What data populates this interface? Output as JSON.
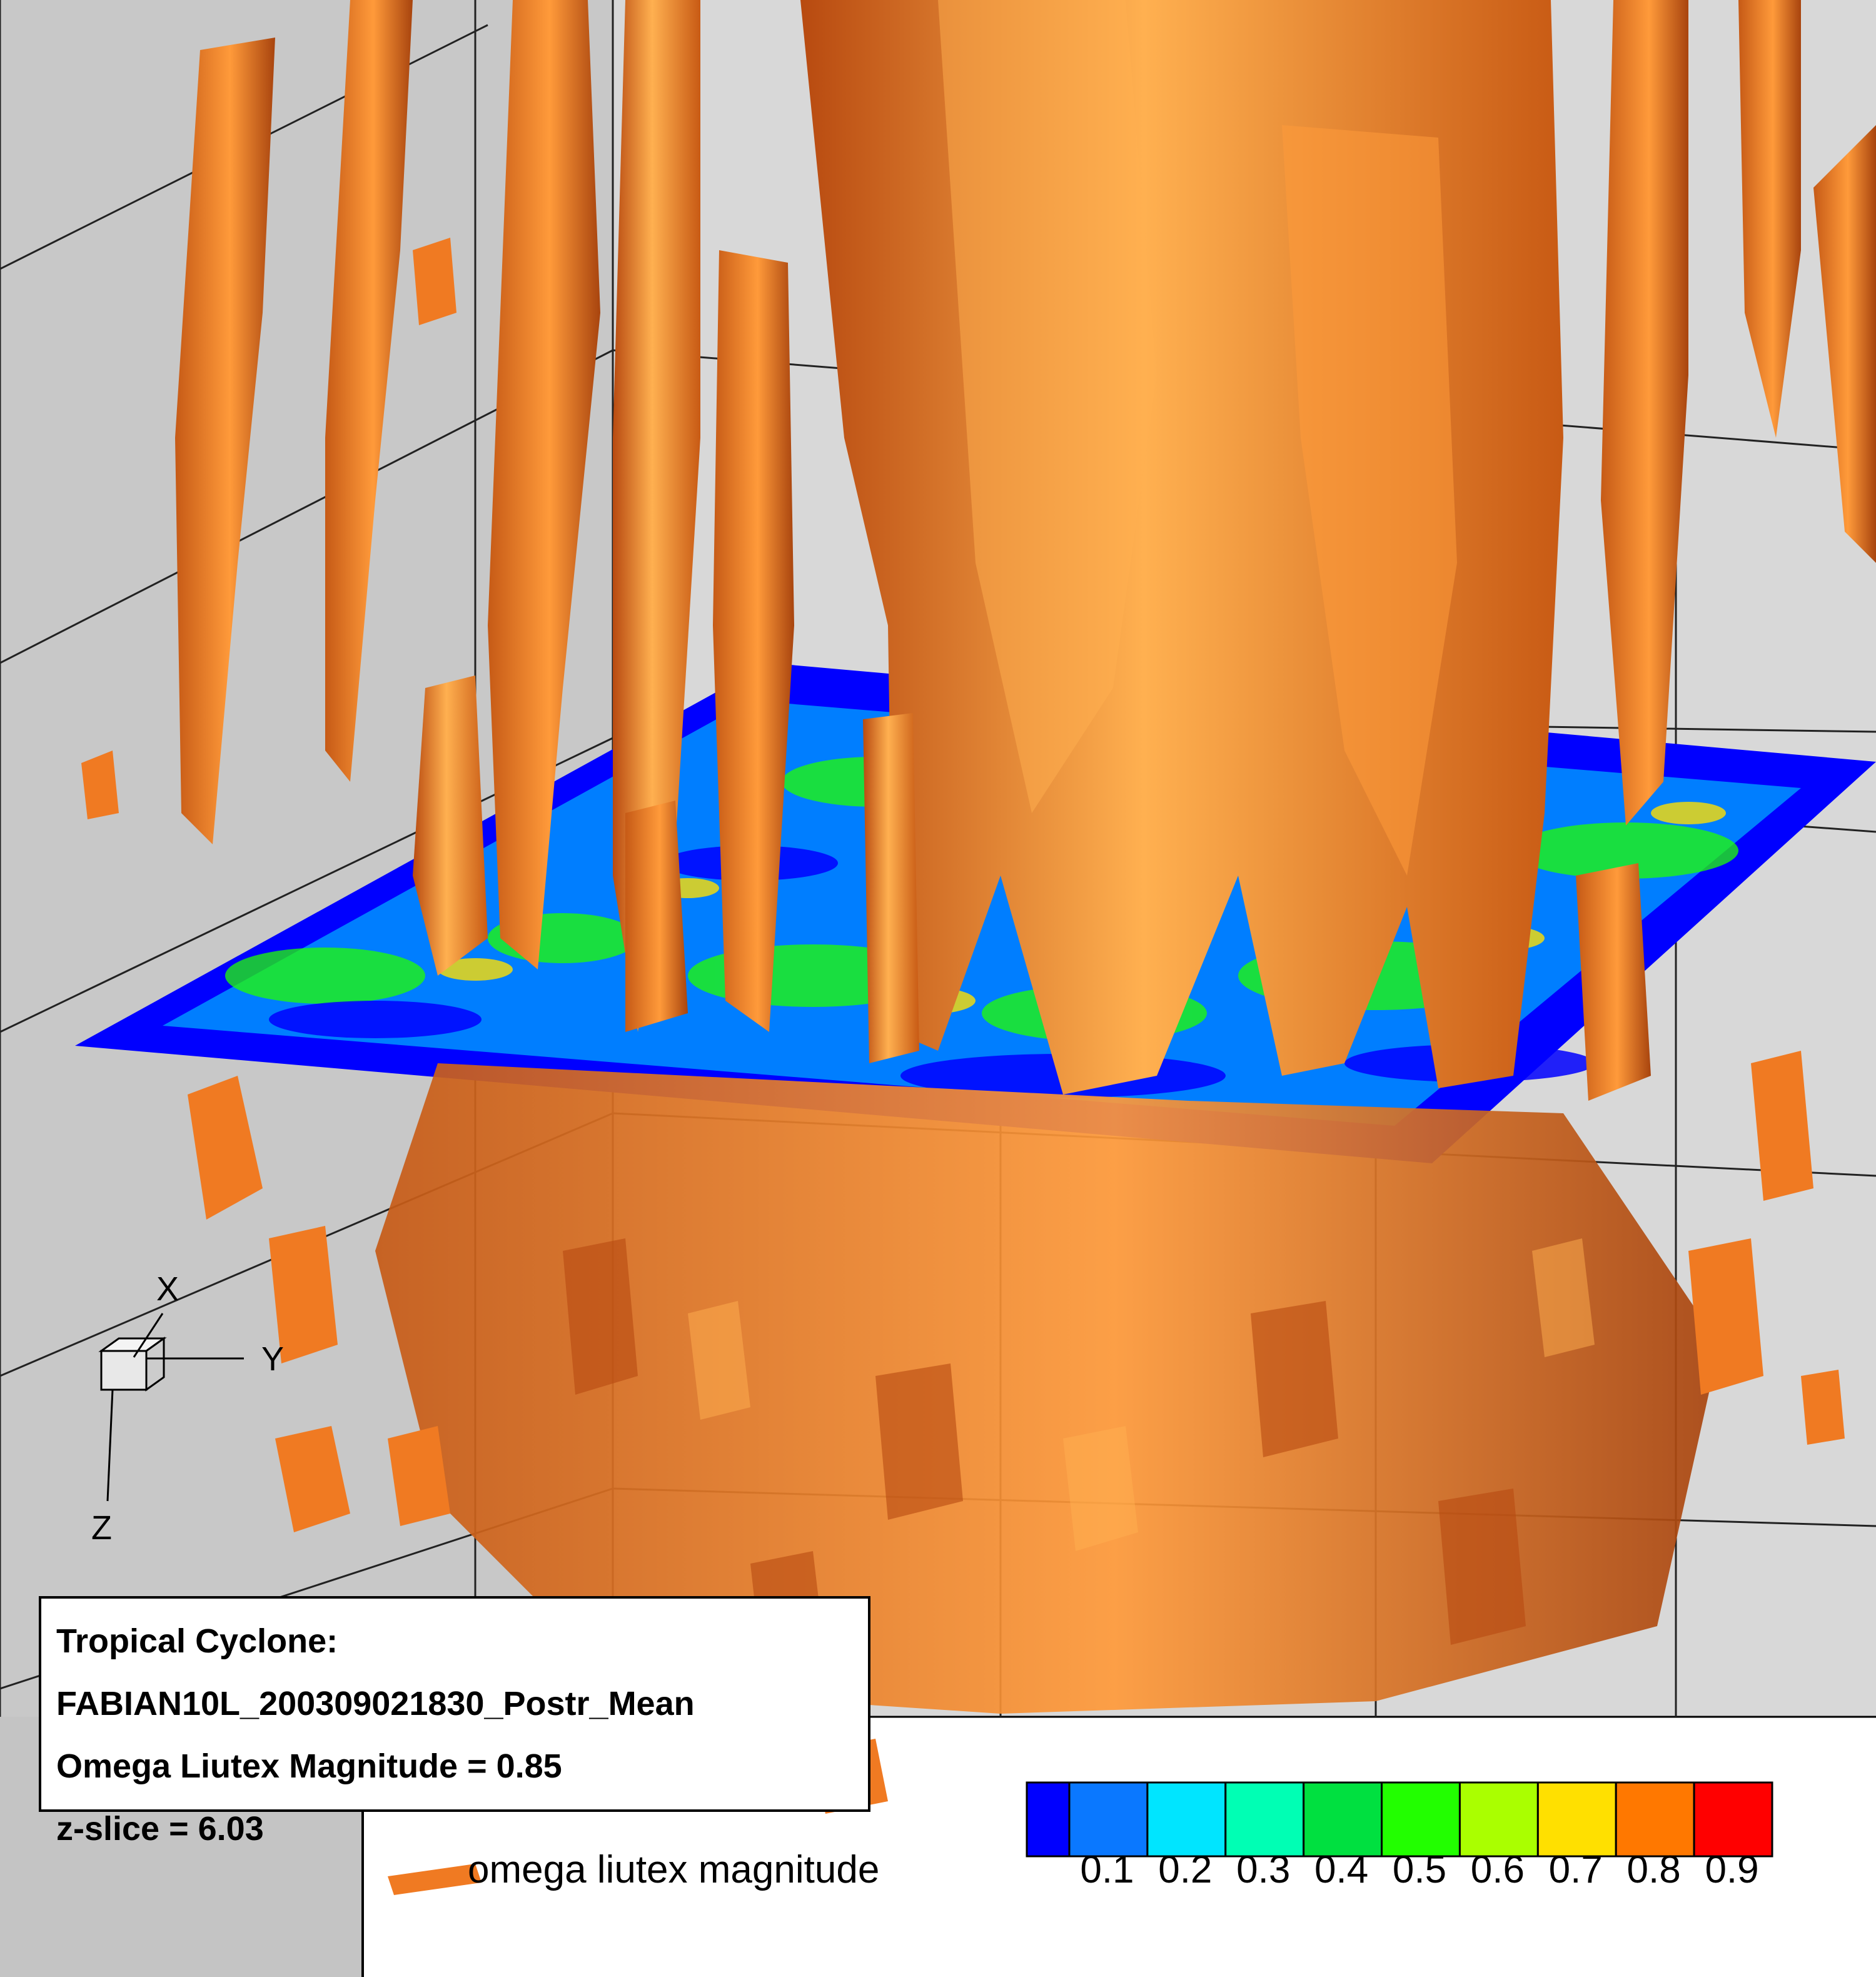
{
  "info_box": {
    "line1": "Tropical Cyclone:",
    "line2": "FABIAN10L_200309021830_Postr_Mean",
    "line3": "Omega Liutex Magnitude = 0.85",
    "line4": "z-slice = 6.03"
  },
  "legend": {
    "label": "omega liutex magnitude",
    "ticks": [
      "0.1",
      "0.2",
      "0.3",
      "0.4",
      "0.5",
      "0.6",
      "0.7",
      "0.8",
      "0.9"
    ],
    "colors": [
      "#0000ff",
      "#0a78ff",
      "#00e5ff",
      "#00ffb4",
      "#00e040",
      "#22ff00",
      "#aaff00",
      "#ffe000",
      "#ff7800",
      "#ff0000"
    ]
  },
  "axes": {
    "x_label": "X",
    "y_label": "Y",
    "z_label": "Z"
  },
  "colors": {
    "background_panel": "#d4d4d4",
    "isosurface": "#f07a22",
    "isosurface_light": "#ffb050",
    "isosurface_dark": "#b84a10"
  }
}
